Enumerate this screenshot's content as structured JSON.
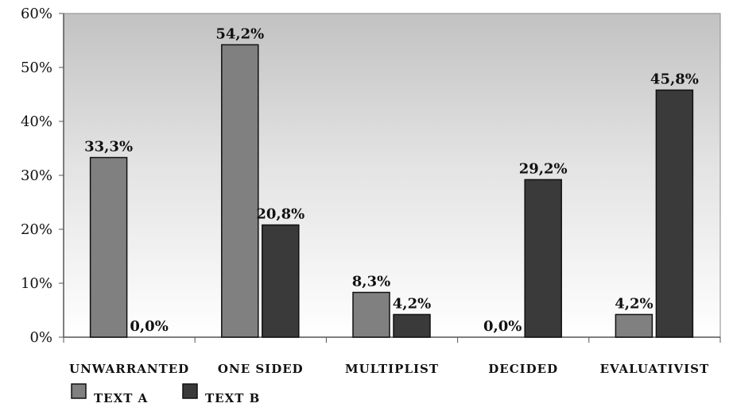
{
  "chart_data": {
    "type": "bar",
    "categories": [
      "UNWARRANTED",
      "ONE SIDED",
      "MULTIPLIST",
      "DECIDED",
      "EVALUATIVIST"
    ],
    "series": [
      {
        "name": "TEXT A",
        "values": [
          33.3,
          54.2,
          8.3,
          0.0,
          4.2
        ],
        "labels": [
          "33,3%",
          "54,2%",
          "8,3%",
          "0,0%",
          "4,2%"
        ],
        "color": "#808080"
      },
      {
        "name": "TEXT B",
        "values": [
          0.0,
          20.8,
          4.2,
          29.2,
          45.8
        ],
        "labels": [
          "0,0%",
          "20,8%",
          "4,2%",
          "29,2%",
          "45,8%"
        ],
        "color": "#3a3a3a"
      }
    ],
    "ylim": [
      0,
      60
    ],
    "yticks": [
      0,
      10,
      20,
      30,
      40,
      50,
      60
    ],
    "ytick_labels": [
      "0%",
      "10%",
      "20%",
      "30%",
      "40%",
      "50%",
      "60%"
    ],
    "grid": false,
    "legend": "bottom-left",
    "background": "gradient-gray"
  }
}
